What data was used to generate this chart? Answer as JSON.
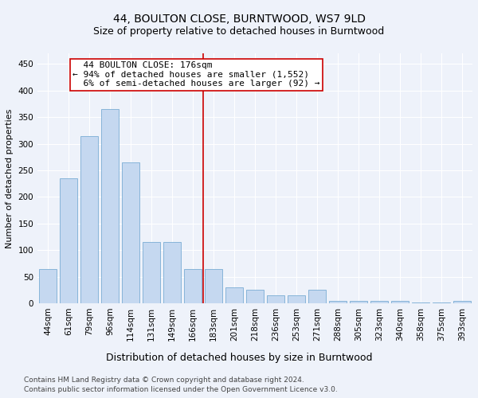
{
  "title": "44, BOULTON CLOSE, BURNTWOOD, WS7 9LD",
  "subtitle": "Size of property relative to detached houses in Burntwood",
  "xlabel": "Distribution of detached houses by size in Burntwood",
  "ylabel": "Number of detached properties",
  "categories": [
    "44sqm",
    "61sqm",
    "79sqm",
    "96sqm",
    "114sqm",
    "131sqm",
    "149sqm",
    "166sqm",
    "183sqm",
    "201sqm",
    "218sqm",
    "236sqm",
    "253sqm",
    "271sqm",
    "288sqm",
    "305sqm",
    "323sqm",
    "340sqm",
    "358sqm",
    "375sqm",
    "393sqm"
  ],
  "values": [
    65,
    235,
    315,
    365,
    265,
    115,
    115,
    65,
    65,
    30,
    25,
    15,
    15,
    25,
    5,
    5,
    5,
    5,
    2,
    2,
    5
  ],
  "bar_color": "#c5d8f0",
  "bar_edgecolor": "#7aadd4",
  "vline_x_index": 7.5,
  "vline_color": "#cc0000",
  "annotation_text": "  44 BOULTON CLOSE: 176sqm\n← 94% of detached houses are smaller (1,552)\n  6% of semi-detached houses are larger (92) →",
  "annotation_box_color": "#ffffff",
  "annotation_box_edgecolor": "#cc0000",
  "ylim": [
    0,
    470
  ],
  "yticks": [
    0,
    50,
    100,
    150,
    200,
    250,
    300,
    350,
    400,
    450
  ],
  "footer1": "Contains HM Land Registry data © Crown copyright and database right 2024.",
  "footer2": "Contains public sector information licensed under the Open Government Licence v3.0.",
  "background_color": "#eef2fa",
  "grid_color": "#ffffff",
  "title_fontsize": 10,
  "subtitle_fontsize": 9,
  "xlabel_fontsize": 9,
  "ylabel_fontsize": 8,
  "tick_fontsize": 7.5,
  "annotation_fontsize": 8,
  "footer_fontsize": 6.5
}
